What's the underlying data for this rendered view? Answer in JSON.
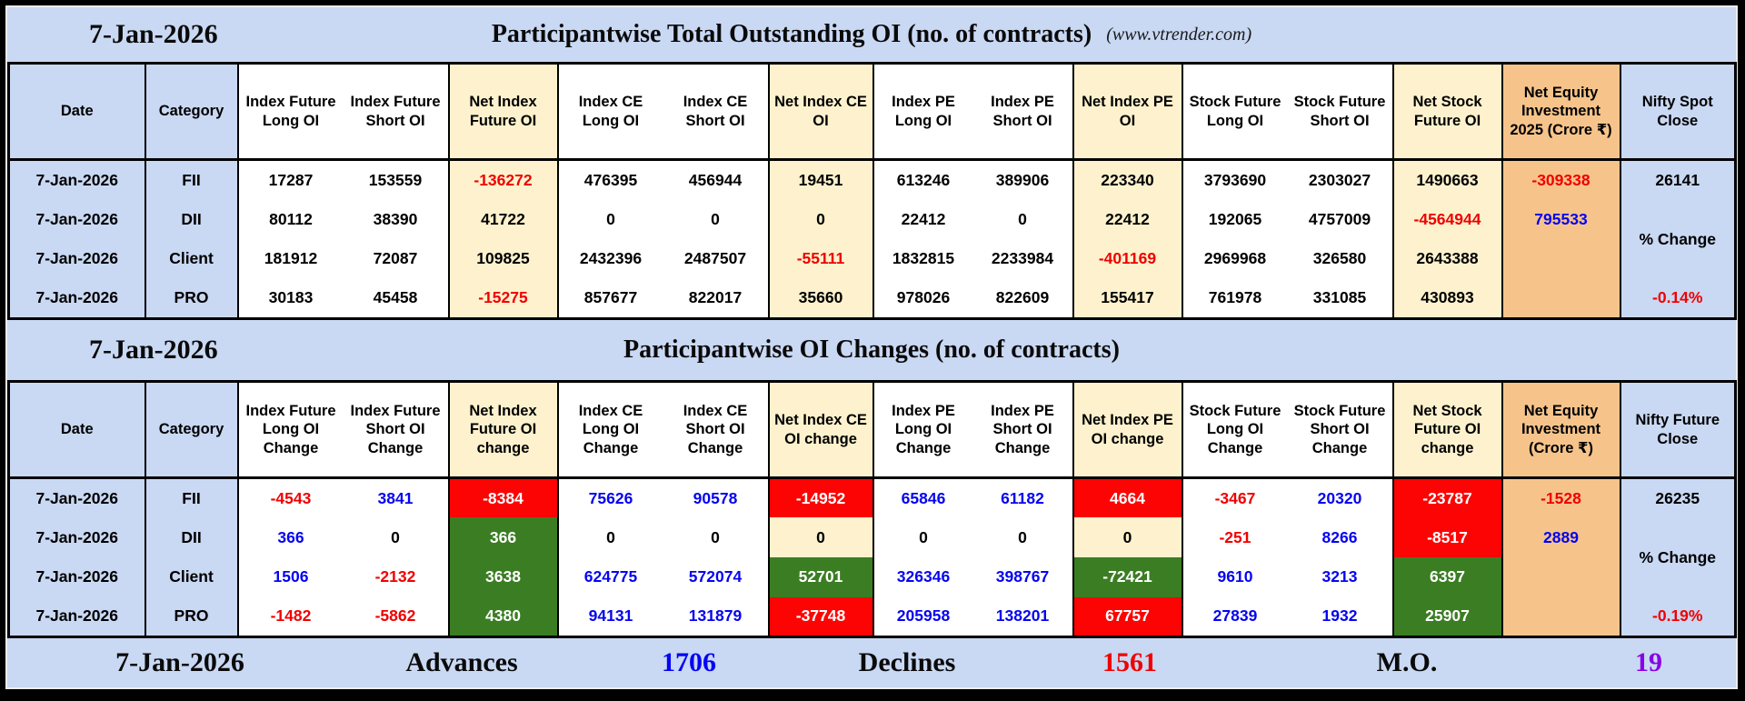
{
  "header": {
    "site": "(www.vtrender.com)"
  },
  "colors": {
    "panel_blue": "#c9d8f3",
    "net_cream": "#fdf2cd",
    "equity_orange": "#f6c48b",
    "negative_red_bg": "#fd0404",
    "positive_green_bg": "#3b7d23",
    "text_red": "#f00000",
    "text_blue": "#0505f0",
    "mo_purple": "#8800e8"
  },
  "chart_data": [
    {
      "type": "table",
      "date": "7-Jan-2026",
      "title": "Participantwise Total Outstanding OI (no. of contracts)",
      "columns": [
        "Date",
        "Category",
        "Index Future Long OI",
        "Index Future Short OI",
        "Net Index Future OI",
        "Index CE Long OI",
        "Index CE Short OI",
        "Net Index CE OI",
        "Index PE Long OI",
        "Index PE Short OI",
        "Net Index PE OI",
        "Stock Future Long OI",
        "Stock Future Short OI",
        "Net Stock Future OI",
        "Net Equity Investment 2025 (Crore ₹)",
        "Nifty Spot Close"
      ],
      "rows": [
        {
          "date": "7-Jan-2026",
          "category": "FII",
          "cells": [
            [
              "17287",
              "k"
            ],
            [
              "153559",
              "k"
            ],
            [
              "-136272",
              "r"
            ],
            [
              "476395",
              "k"
            ],
            [
              "456944",
              "k"
            ],
            [
              "19451",
              "k"
            ],
            [
              "613246",
              "k"
            ],
            [
              "389906",
              "k"
            ],
            [
              "223340",
              "k"
            ],
            [
              "3793690",
              "k"
            ],
            [
              "2303027",
              "k"
            ],
            [
              "1490663",
              "k"
            ]
          ]
        },
        {
          "date": "7-Jan-2026",
          "category": "DII",
          "cells": [
            [
              "80112",
              "k"
            ],
            [
              "38390",
              "k"
            ],
            [
              "41722",
              "k"
            ],
            [
              "0",
              "k"
            ],
            [
              "0",
              "k"
            ],
            [
              "0",
              "k"
            ],
            [
              "22412",
              "k"
            ],
            [
              "0",
              "k"
            ],
            [
              "22412",
              "k"
            ],
            [
              "192065",
              "k"
            ],
            [
              "4757009",
              "k"
            ],
            [
              "-4564944",
              "r"
            ]
          ]
        },
        {
          "date": "7-Jan-2026",
          "category": "Client",
          "cells": [
            [
              "181912",
              "k"
            ],
            [
              "72087",
              "k"
            ],
            [
              "109825",
              "k"
            ],
            [
              "2432396",
              "k"
            ],
            [
              "2487507",
              "k"
            ],
            [
              "-55111",
              "r"
            ],
            [
              "1832815",
              "k"
            ],
            [
              "2233984",
              "k"
            ],
            [
              "-401169",
              "r"
            ],
            [
              "2969968",
              "k"
            ],
            [
              "326580",
              "k"
            ],
            [
              "2643388",
              "k"
            ]
          ]
        },
        {
          "date": "7-Jan-2026",
          "category": "PRO",
          "cells": [
            [
              "30183",
              "k"
            ],
            [
              "45458",
              "k"
            ],
            [
              "-15275",
              "r"
            ],
            [
              "857677",
              "k"
            ],
            [
              "822017",
              "k"
            ],
            [
              "35660",
              "k"
            ],
            [
              "978026",
              "k"
            ],
            [
              "822609",
              "k"
            ],
            [
              "155417",
              "k"
            ],
            [
              "761978",
              "k"
            ],
            [
              "331085",
              "k"
            ],
            [
              "430893",
              "k"
            ]
          ]
        }
      ],
      "equity": [
        [
          "-309338",
          "r"
        ],
        [
          "795533",
          "b"
        ]
      ],
      "nifty": {
        "value": "26141",
        "label": "% Change",
        "pct": "-0.14%"
      }
    },
    {
      "type": "table",
      "date": "7-Jan-2026",
      "title": "Participantwise OI Changes (no. of contracts)",
      "columns": [
        "Date",
        "Category",
        "Index Future Long OI Change",
        "Index Future Short OI Change",
        "Net Index Future OI change",
        "Index CE Long OI Change",
        "Index CE Short OI Change",
        "Net Index CE OI change",
        "Index PE Long OI Change",
        "Index PE Short OI Change",
        "Net Index PE OI change",
        "Stock Future Long OI Change",
        "Stock Future Short OI Change",
        "Net Stock Future OI change",
        "Net Equity Investment (Crore ₹)",
        "Nifty Future Close"
      ],
      "rows": [
        {
          "date": "7-Jan-2026",
          "category": "FII",
          "cells": [
            [
              "-4543",
              "r"
            ],
            [
              "3841",
              "b"
            ],
            [
              "-8384",
              "rbg"
            ],
            [
              "75626",
              "b"
            ],
            [
              "90578",
              "b"
            ],
            [
              "-14952",
              "rbg"
            ],
            [
              "65846",
              "b"
            ],
            [
              "61182",
              "b"
            ],
            [
              "4664",
              "rbg"
            ],
            [
              "-3467",
              "r"
            ],
            [
              "20320",
              "b"
            ],
            [
              "-23787",
              "rbg"
            ]
          ]
        },
        {
          "date": "7-Jan-2026",
          "category": "DII",
          "cells": [
            [
              "366",
              "b"
            ],
            [
              "0",
              "k"
            ],
            [
              "366",
              "gbg"
            ],
            [
              "0",
              "k"
            ],
            [
              "0",
              "k"
            ],
            [
              "0",
              "k"
            ],
            [
              "0",
              "k"
            ],
            [
              "0",
              "k"
            ],
            [
              "0",
              "k"
            ],
            [
              "-251",
              "r"
            ],
            [
              "8266",
              "b"
            ],
            [
              "-8517",
              "rbg"
            ]
          ]
        },
        {
          "date": "7-Jan-2026",
          "category": "Client",
          "cells": [
            [
              "1506",
              "b"
            ],
            [
              "-2132",
              "r"
            ],
            [
              "3638",
              "gbg"
            ],
            [
              "624775",
              "b"
            ],
            [
              "572074",
              "b"
            ],
            [
              "52701",
              "gbg"
            ],
            [
              "326346",
              "b"
            ],
            [
              "398767",
              "b"
            ],
            [
              "-72421",
              "gbg"
            ],
            [
              "9610",
              "b"
            ],
            [
              "3213",
              "b"
            ],
            [
              "6397",
              "gbg"
            ]
          ]
        },
        {
          "date": "7-Jan-2026",
          "category": "PRO",
          "cells": [
            [
              "-1482",
              "r"
            ],
            [
              "-5862",
              "r"
            ],
            [
              "4380",
              "gbg"
            ],
            [
              "94131",
              "b"
            ],
            [
              "131879",
              "b"
            ],
            [
              "-37748",
              "rbg"
            ],
            [
              "205958",
              "b"
            ],
            [
              "138201",
              "b"
            ],
            [
              "67757",
              "rbg"
            ],
            [
              "27839",
              "b"
            ],
            [
              "1932",
              "b"
            ],
            [
              "25907",
              "gbg"
            ]
          ]
        }
      ],
      "equity": [
        [
          "-1528",
          "r"
        ],
        [
          "2889",
          "b"
        ]
      ],
      "nifty": {
        "value": "26235",
        "label": "% Change",
        "pct": "-0.19%"
      }
    }
  ],
  "footer": {
    "date": "7-Jan-2026",
    "advances_label": "Advances",
    "advances": "1706",
    "declines_label": "Declines",
    "declines": "1561",
    "mo_label": "M.O.",
    "mo": "19"
  }
}
